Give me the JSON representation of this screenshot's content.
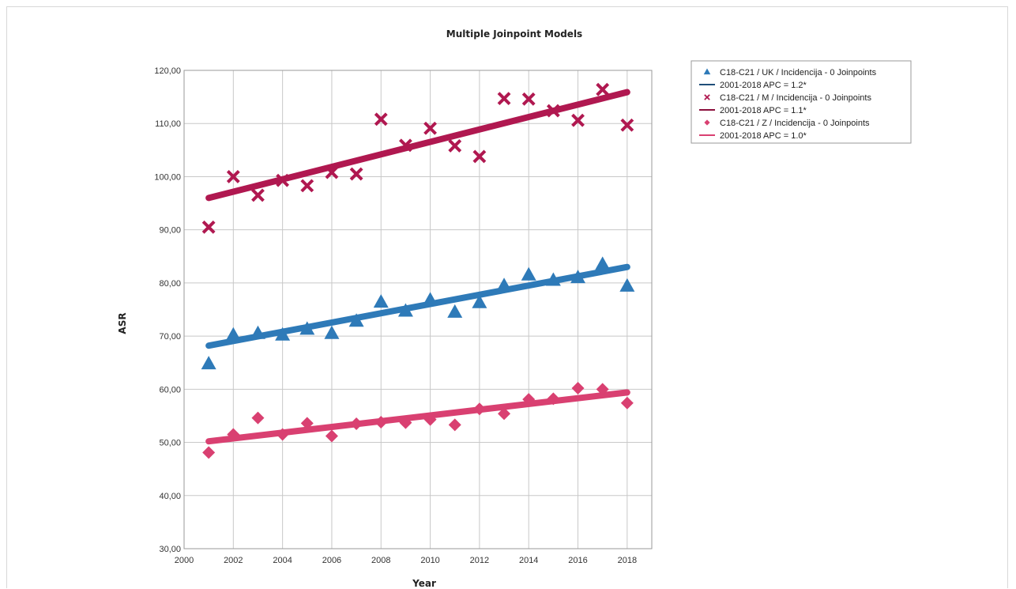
{
  "chart_data": {
    "type": "scatter",
    "title": "Multiple Joinpoint Models",
    "xlabel": "Year",
    "ylabel": "ASR",
    "xlim": [
      2000,
      2019
    ],
    "ylim": [
      30,
      120
    ],
    "x_ticks": [
      2000,
      2002,
      2004,
      2006,
      2008,
      2010,
      2012,
      2014,
      2016,
      2018
    ],
    "y_ticks": [
      "30,00",
      "40,00",
      "50,00",
      "60,00",
      "70,00",
      "80,00",
      "90,00",
      "100,00",
      "110,00",
      "120,00"
    ],
    "y_tick_values": [
      30,
      40,
      50,
      60,
      70,
      80,
      90,
      100,
      110,
      120
    ],
    "grid": true,
    "legend_position": "top-right",
    "x": [
      2001,
      2002,
      2003,
      2004,
      2005,
      2006,
      2007,
      2008,
      2009,
      2010,
      2011,
      2012,
      2013,
      2014,
      2015,
      2016,
      2017,
      2018
    ],
    "series": [
      {
        "name": "C18-C21 / UK / Incidencija - 0 Joinpoints",
        "marker": "triangle",
        "color": "#2e7ab8",
        "values": [
          64.8,
          70.2,
          70.5,
          70.2,
          71.3,
          70.5,
          72.8,
          76.4,
          74.7,
          76.8,
          74.5,
          76.3,
          79.5,
          81.5,
          80.5,
          81.0,
          83.5,
          79.4
        ],
        "fit": {
          "label": "2001-2018 APC  = 1.2*",
          "line_color": "#1f4e79",
          "from": [
            2001,
            68.2
          ],
          "to": [
            2018,
            83.0
          ]
        }
      },
      {
        "name": "C18-C21 / M / Incidencija - 0 Joinpoints",
        "marker": "x",
        "color": "#b01850",
        "values": [
          90.5,
          100.0,
          96.5,
          99.3,
          98.3,
          100.8,
          100.5,
          110.8,
          105.9,
          109.1,
          105.8,
          103.8,
          114.7,
          114.6,
          112.4,
          110.6,
          116.4,
          109.7
        ],
        "fit": {
          "label": "2001-2018 APC  = 1.1*",
          "line_color": "#8b0f3c",
          "from": [
            2001,
            96.0
          ],
          "to": [
            2018,
            115.9
          ]
        }
      },
      {
        "name": "C18-C21 / Z / Incidencija - 0 Joinpoints",
        "marker": "diamond",
        "color": "#d94071",
        "values": [
          48.1,
          51.5,
          54.6,
          51.5,
          53.6,
          51.2,
          53.5,
          53.8,
          53.7,
          54.3,
          53.3,
          56.3,
          55.4,
          58.1,
          58.2,
          60.2,
          60.0,
          57.4
        ],
        "fit": {
          "label": "2001-2018 APC  = 1.0*",
          "line_color": "#d94071",
          "from": [
            2001,
            50.2
          ],
          "to": [
            2018,
            59.4
          ]
        }
      }
    ]
  }
}
